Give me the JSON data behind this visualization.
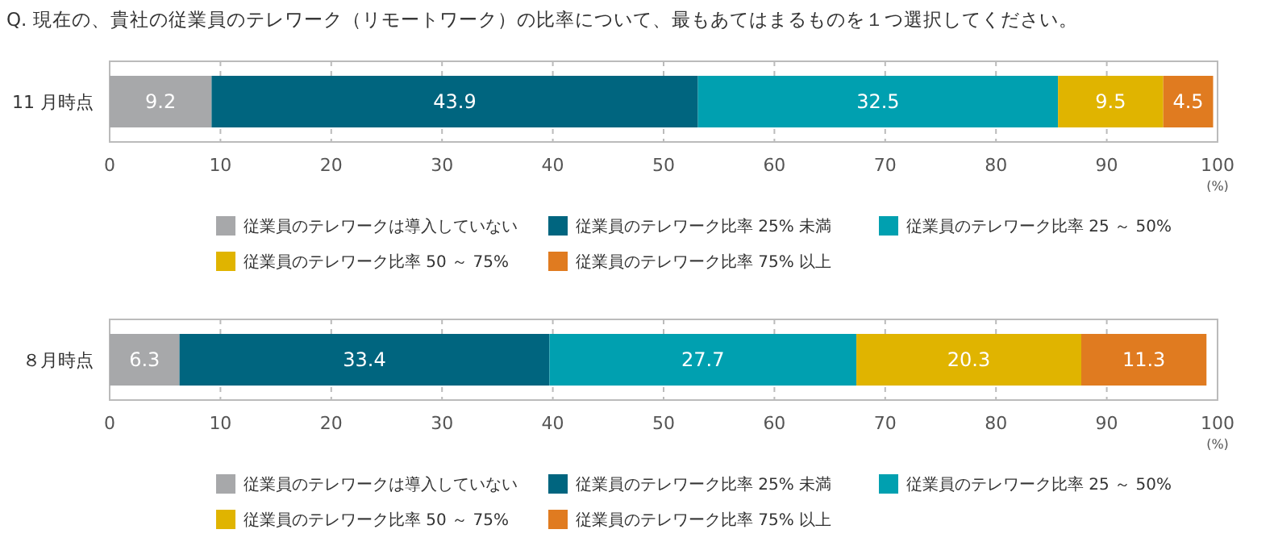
{
  "chart_data": [
    {
      "type": "bar",
      "title": "Q. 現在の、貴社の従業員のテレワーク（リモートワーク）の比率について、最もあてはまるものを１つ選択してください。",
      "orientation": "horizontal",
      "stacked": true,
      "categories": [
        "11 月時点"
      ],
      "xlim": [
        0,
        100
      ],
      "xticks": [
        0,
        10,
        20,
        30,
        40,
        50,
        60,
        70,
        80,
        90,
        100
      ],
      "xlabel": "(%)",
      "grid": "x",
      "legend": "bottom",
      "data_labels": true,
      "series": [
        {
          "name": "従業員のテレワークは導入していない",
          "color": "#a7a8aa",
          "values": [
            9.2
          ]
        },
        {
          "name": "従業員のテレワーク比率 25% 未満",
          "color": "#00657f",
          "values": [
            43.9
          ]
        },
        {
          "name": "従業員のテレワーク比率 25 ～ 50%",
          "color": "#00a0b0",
          "values": [
            32.5
          ]
        },
        {
          "name": "従業員のテレワーク比率 50 ～ 75%",
          "color": "#e0b400",
          "values": [
            9.5
          ]
        },
        {
          "name": "従業員のテレワーク比率 75% 以上",
          "color": "#e07b20",
          "values": [
            4.5
          ]
        }
      ]
    },
    {
      "type": "bar",
      "orientation": "horizontal",
      "stacked": true,
      "categories": [
        "８月時点"
      ],
      "xlim": [
        0,
        100
      ],
      "xticks": [
        0,
        10,
        20,
        30,
        40,
        50,
        60,
        70,
        80,
        90,
        100
      ],
      "xlabel": "(%)",
      "grid": "x",
      "legend": "bottom",
      "data_labels": true,
      "series": [
        {
          "name": "従業員のテレワークは導入していない",
          "color": "#a7a8aa",
          "values": [
            6.3
          ]
        },
        {
          "name": "従業員のテレワーク比率 25% 未満",
          "color": "#00657f",
          "values": [
            33.4
          ]
        },
        {
          "name": "従業員のテレワーク比率 25 ～ 50%",
          "color": "#00a0b0",
          "values": [
            27.7
          ]
        },
        {
          "name": "従業員のテレワーク比率 50 ～ 75%",
          "color": "#e0b400",
          "values": [
            20.3
          ]
        },
        {
          "name": "従業員のテレワーク比率 75% 以上",
          "color": "#e07b20",
          "values": [
            11.3
          ]
        }
      ]
    }
  ]
}
